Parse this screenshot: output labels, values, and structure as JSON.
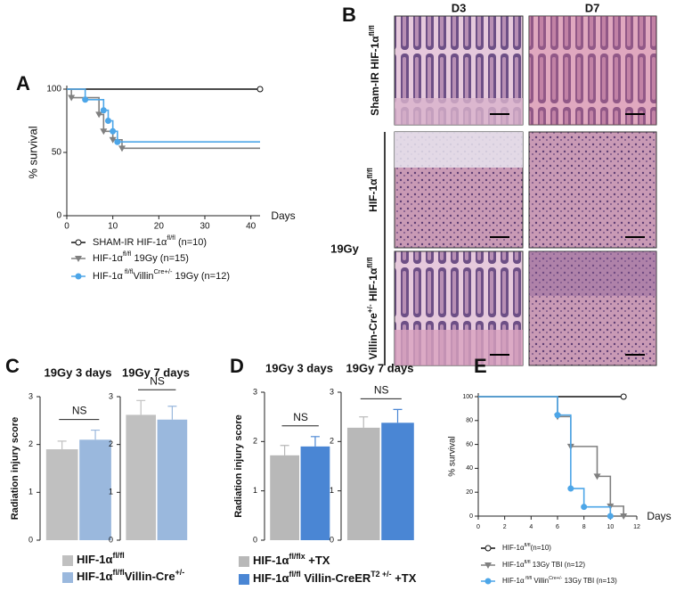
{
  "panel_labels": [
    "A",
    "B",
    "C",
    "D",
    "E"
  ],
  "histology": {
    "columns": [
      "D3",
      "D7"
    ],
    "rows": [
      [
        "Sham-IR HIF-1α",
        "fl/fl"
      ],
      [
        "HIF-1α",
        "fl/fl"
      ],
      [
        "Villin-Cre",
        "+/-",
        " HIF-1α",
        "fl/fl"
      ]
    ],
    "group": "19Gy"
  },
  "chart_data": [
    {
      "type": "line",
      "ylabel": "% survival",
      "xlabel": "Days",
      "xlim": [
        0,
        42
      ],
      "xticks": [
        0,
        10,
        20,
        30,
        40
      ],
      "ylim": [
        0,
        100
      ],
      "yticks": [
        0,
        50,
        100
      ],
      "series": [
        {
          "name": [
            "SHAM-IR HIF-1α",
            "fl/fl",
            " (n=10)"
          ],
          "color": "#111111",
          "marker": "circle-open",
          "end_marker": true,
          "x": [
            0,
            42
          ],
          "values": [
            100,
            100
          ]
        },
        {
          "name": [
            "HIF-1α",
            "fl/fl",
            " 19Gy (n=15)"
          ],
          "color": "#808080",
          "marker": "triangle-down",
          "end_marker": false,
          "x": [
            0,
            1,
            7,
            8,
            10,
            12,
            42
          ],
          "values": [
            100,
            93.3,
            80,
            66.7,
            60,
            53.3,
            53.3
          ]
        },
        {
          "name": [
            "HIF-1α",
            " fl/fl",
            "Villin",
            "Cre+/-",
            " 19Gy (n=12)"
          ],
          "color": "#4da6e8",
          "marker": "circle",
          "end_marker": false,
          "x": [
            0,
            4,
            8,
            9,
            10,
            11,
            42
          ],
          "values": [
            100,
            91.7,
            83.3,
            75,
            66.7,
            58.3,
            58.3
          ]
        }
      ]
    },
    {
      "type": "bar",
      "ylabel": "Radiation injury score",
      "ylim": [
        0,
        3
      ],
      "yticks": [
        0,
        1,
        2,
        3
      ],
      "series": [
        {
          "name": [
            "HIF-1α",
            "fl/fl"
          ],
          "color": "#c0c0c0"
        },
        {
          "name": [
            "HIF-1α",
            "fl/fl",
            "Villin-Cre",
            "+/-"
          ],
          "color": "#9ab8dd"
        }
      ],
      "groups": [
        {
          "title": "19Gy 3 days",
          "values": [
            1.9,
            2.1
          ],
          "errors": [
            0.17,
            0.2
          ],
          "annotation": "NS"
        },
        {
          "title": "19Gy 7 days",
          "values": [
            2.62,
            2.52
          ],
          "errors": [
            0.3,
            0.28
          ],
          "annotation": "NS"
        }
      ]
    },
    {
      "type": "bar",
      "ylabel": "Radiation injury score",
      "ylim": [
        0,
        3
      ],
      "yticks": [
        0,
        1,
        2,
        3
      ],
      "series": [
        {
          "name": [
            "HIF-1α",
            "fl/flx",
            " +TX"
          ],
          "color": "#b8b8b8"
        },
        {
          "name": [
            "HIF-1α",
            "fl/fl",
            " Villin-CreER",
            "T2 +/-",
            " +TX"
          ],
          "color": "#4a86d4"
        }
      ],
      "groups": [
        {
          "title": "19Gy 3 days",
          "values": [
            1.72,
            1.9
          ],
          "errors": [
            0.2,
            0.2
          ],
          "annotation": "NS"
        },
        {
          "title": "19Gy 7 days",
          "values": [
            2.28,
            2.38
          ],
          "errors": [
            0.22,
            0.27
          ],
          "annotation": "NS"
        }
      ]
    },
    {
      "type": "line",
      "ylabel": "% survival",
      "xlabel": "Days",
      "xlim": [
        0,
        12
      ],
      "xticks": [
        0,
        2,
        4,
        6,
        8,
        10,
        12
      ],
      "ylim": [
        0,
        100
      ],
      "yticks": [
        0,
        20,
        40,
        60,
        80,
        100
      ],
      "series": [
        {
          "name": [
            "HIF-1α",
            "fl/fl",
            "(n=10)"
          ],
          "color": "#111111",
          "marker": "circle-open",
          "end_marker": true,
          "x": [
            0,
            11
          ],
          "values": [
            100,
            100
          ]
        },
        {
          "name": [
            "HIF-1α",
            "fl/fl",
            " 13Gy TBI (n=12)"
          ],
          "color": "#808080",
          "marker": "triangle-down",
          "end_marker": true,
          "x": [
            0,
            6,
            7,
            9,
            10,
            11
          ],
          "values": [
            100,
            83.3,
            58.3,
            33.3,
            8.3,
            0
          ]
        },
        {
          "name": [
            "HIF-1α",
            " fl/fl",
            " Villin",
            "Cre+/-",
            " 13Gy TBI (n=13)"
          ],
          "color": "#4da6e8",
          "marker": "circle",
          "end_marker": true,
          "x": [
            0,
            6,
            7,
            8,
            10
          ],
          "values": [
            100,
            84.6,
            23.1,
            7.7,
            0
          ]
        }
      ]
    }
  ]
}
